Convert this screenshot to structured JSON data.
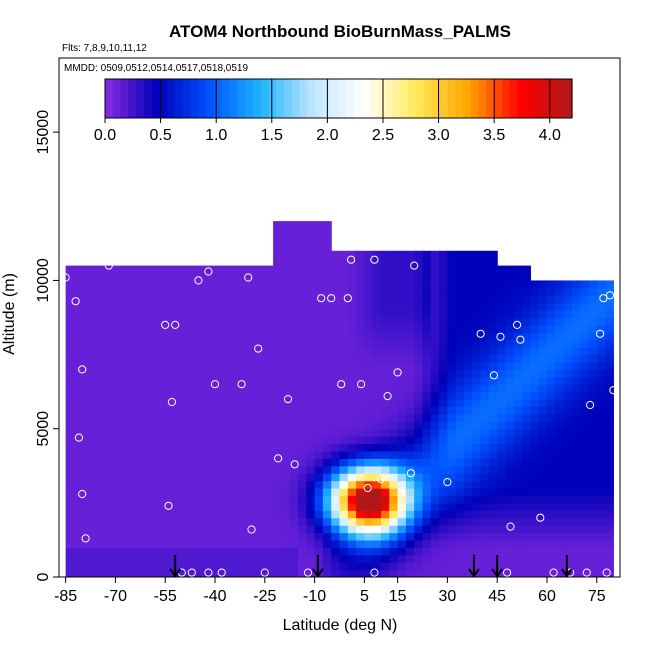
{
  "chart_data": {
    "type": "heatmap",
    "title": "ATOM4 Northbound BioBurnMass_PALMS",
    "subtitle_flights": "Flts: 7,8,9,10,11,12",
    "subtitle_dates": "MMDD: 0509,0512,0514,0517,0518,0519",
    "xlabel": "Latitude (deg N)",
    "ylabel": "Altitude (m)",
    "xlim": [
      -87,
      82
    ],
    "ylim": [
      0,
      17500
    ],
    "x_ticks": [
      -85,
      -70,
      -55,
      -40,
      -25,
      -10,
      5,
      15,
      30,
      45,
      60,
      75
    ],
    "y_ticks": [
      0,
      5000,
      10000,
      15000
    ],
    "colorbar": {
      "min": 0.0,
      "max": 4.2,
      "ticks": [
        0.0,
        0.5,
        1.0,
        1.5,
        2.0,
        2.5,
        3.0,
        3.5,
        4.0
      ],
      "tick_labels": [
        "0.0",
        "0.5",
        "1.0",
        "1.5",
        "2.0",
        "2.5",
        "3.0",
        "3.5",
        "4.0"
      ],
      "colors": [
        "#8a2be2",
        "#0000b8",
        "#0050ff",
        "#1eb4ff",
        "#bfe6ff",
        "#ffffff",
        "#ffea5a",
        "#ffa500",
        "#ff0000",
        "#b01818"
      ]
    },
    "data_coverage": [
      {
        "lat_from": -85,
        "lat_to": -22,
        "alt_top": 10500
      },
      {
        "lat_from": -22,
        "lat_to": -5,
        "alt_top": 11900
      },
      {
        "lat_from": -5,
        "lat_to": 25,
        "alt_top": 11000
      },
      {
        "lat_from": 25,
        "lat_to": 45,
        "alt_top": 10800
      },
      {
        "lat_from": 45,
        "lat_to": 55,
        "alt_top": 10500
      },
      {
        "lat_from": 55,
        "lat_to": 80,
        "alt_top": 9800
      }
    ],
    "plume": {
      "center_lat": 6,
      "center_alt": 2600,
      "peak_value": 4.1
    },
    "sample_points": [
      {
        "lat": -85,
        "alt": 10100
      },
      {
        "lat": -82,
        "alt": 9300
      },
      {
        "lat": -80,
        "alt": 7000
      },
      {
        "lat": -81,
        "alt": 4700
      },
      {
        "lat": -80,
        "alt": 2800
      },
      {
        "lat": -79,
        "alt": 1300
      },
      {
        "lat": -72,
        "alt": 10500
      },
      {
        "lat": -55,
        "alt": 8500
      },
      {
        "lat": -52,
        "alt": 8500
      },
      {
        "lat": -53,
        "alt": 5900
      },
      {
        "lat": -54,
        "alt": 2400
      },
      {
        "lat": -45,
        "alt": 10000
      },
      {
        "lat": -42,
        "alt": 10300
      },
      {
        "lat": -37,
        "alt": 10900
      },
      {
        "lat": -40,
        "alt": 6500
      },
      {
        "lat": -30,
        "alt": 10100
      },
      {
        "lat": -32,
        "alt": 6500
      },
      {
        "lat": -27,
        "alt": 7700
      },
      {
        "lat": -25,
        "alt": 11100
      },
      {
        "lat": -18,
        "alt": 6000
      },
      {
        "lat": -21,
        "alt": 4000
      },
      {
        "lat": -16,
        "alt": 3800
      },
      {
        "lat": -29,
        "alt": 1600
      },
      {
        "lat": -8,
        "alt": 9400
      },
      {
        "lat": -5,
        "alt": 9400
      },
      {
        "lat": 0,
        "alt": 9400
      },
      {
        "lat": 1,
        "alt": 10700
      },
      {
        "lat": 8,
        "alt": 10700
      },
      {
        "lat": -2,
        "alt": 6500
      },
      {
        "lat": 4,
        "alt": 6500
      },
      {
        "lat": 12,
        "alt": 6100
      },
      {
        "lat": 15,
        "alt": 6900
      },
      {
        "lat": 10,
        "alt": 3300
      },
      {
        "lat": 6,
        "alt": 3000
      },
      {
        "lat": 19,
        "alt": 3500
      },
      {
        "lat": 30,
        "alt": 3200
      },
      {
        "lat": 20,
        "alt": 10500
      },
      {
        "lat": 40,
        "alt": 8200
      },
      {
        "lat": 46,
        "alt": 8100
      },
      {
        "lat": 51,
        "alt": 8500
      },
      {
        "lat": 52,
        "alt": 8000
      },
      {
        "lat": 44,
        "alt": 6800
      },
      {
        "lat": 49,
        "alt": 1700
      },
      {
        "lat": 58,
        "alt": 2000
      },
      {
        "lat": 57,
        "alt": 10400
      },
      {
        "lat": 73,
        "alt": 5800
      },
      {
        "lat": 76,
        "alt": 8200
      },
      {
        "lat": 77,
        "alt": 9400
      },
      {
        "lat": 79,
        "alt": 9500
      },
      {
        "lat": 80,
        "alt": 6300
      },
      {
        "lat": -50,
        "alt": 150
      },
      {
        "lat": -47,
        "alt": 150
      },
      {
        "lat": -42,
        "alt": 150
      },
      {
        "lat": -38,
        "alt": 150
      },
      {
        "lat": -25,
        "alt": 150
      },
      {
        "lat": -12,
        "alt": 150
      },
      {
        "lat": 8,
        "alt": 150
      },
      {
        "lat": 48,
        "alt": 150
      },
      {
        "lat": 62,
        "alt": 150
      },
      {
        "lat": 67,
        "alt": 150
      },
      {
        "lat": 72,
        "alt": 150
      },
      {
        "lat": 78,
        "alt": 150
      }
    ],
    "arrow_markers_lat": [
      -52,
      -9,
      38,
      45,
      66
    ]
  }
}
